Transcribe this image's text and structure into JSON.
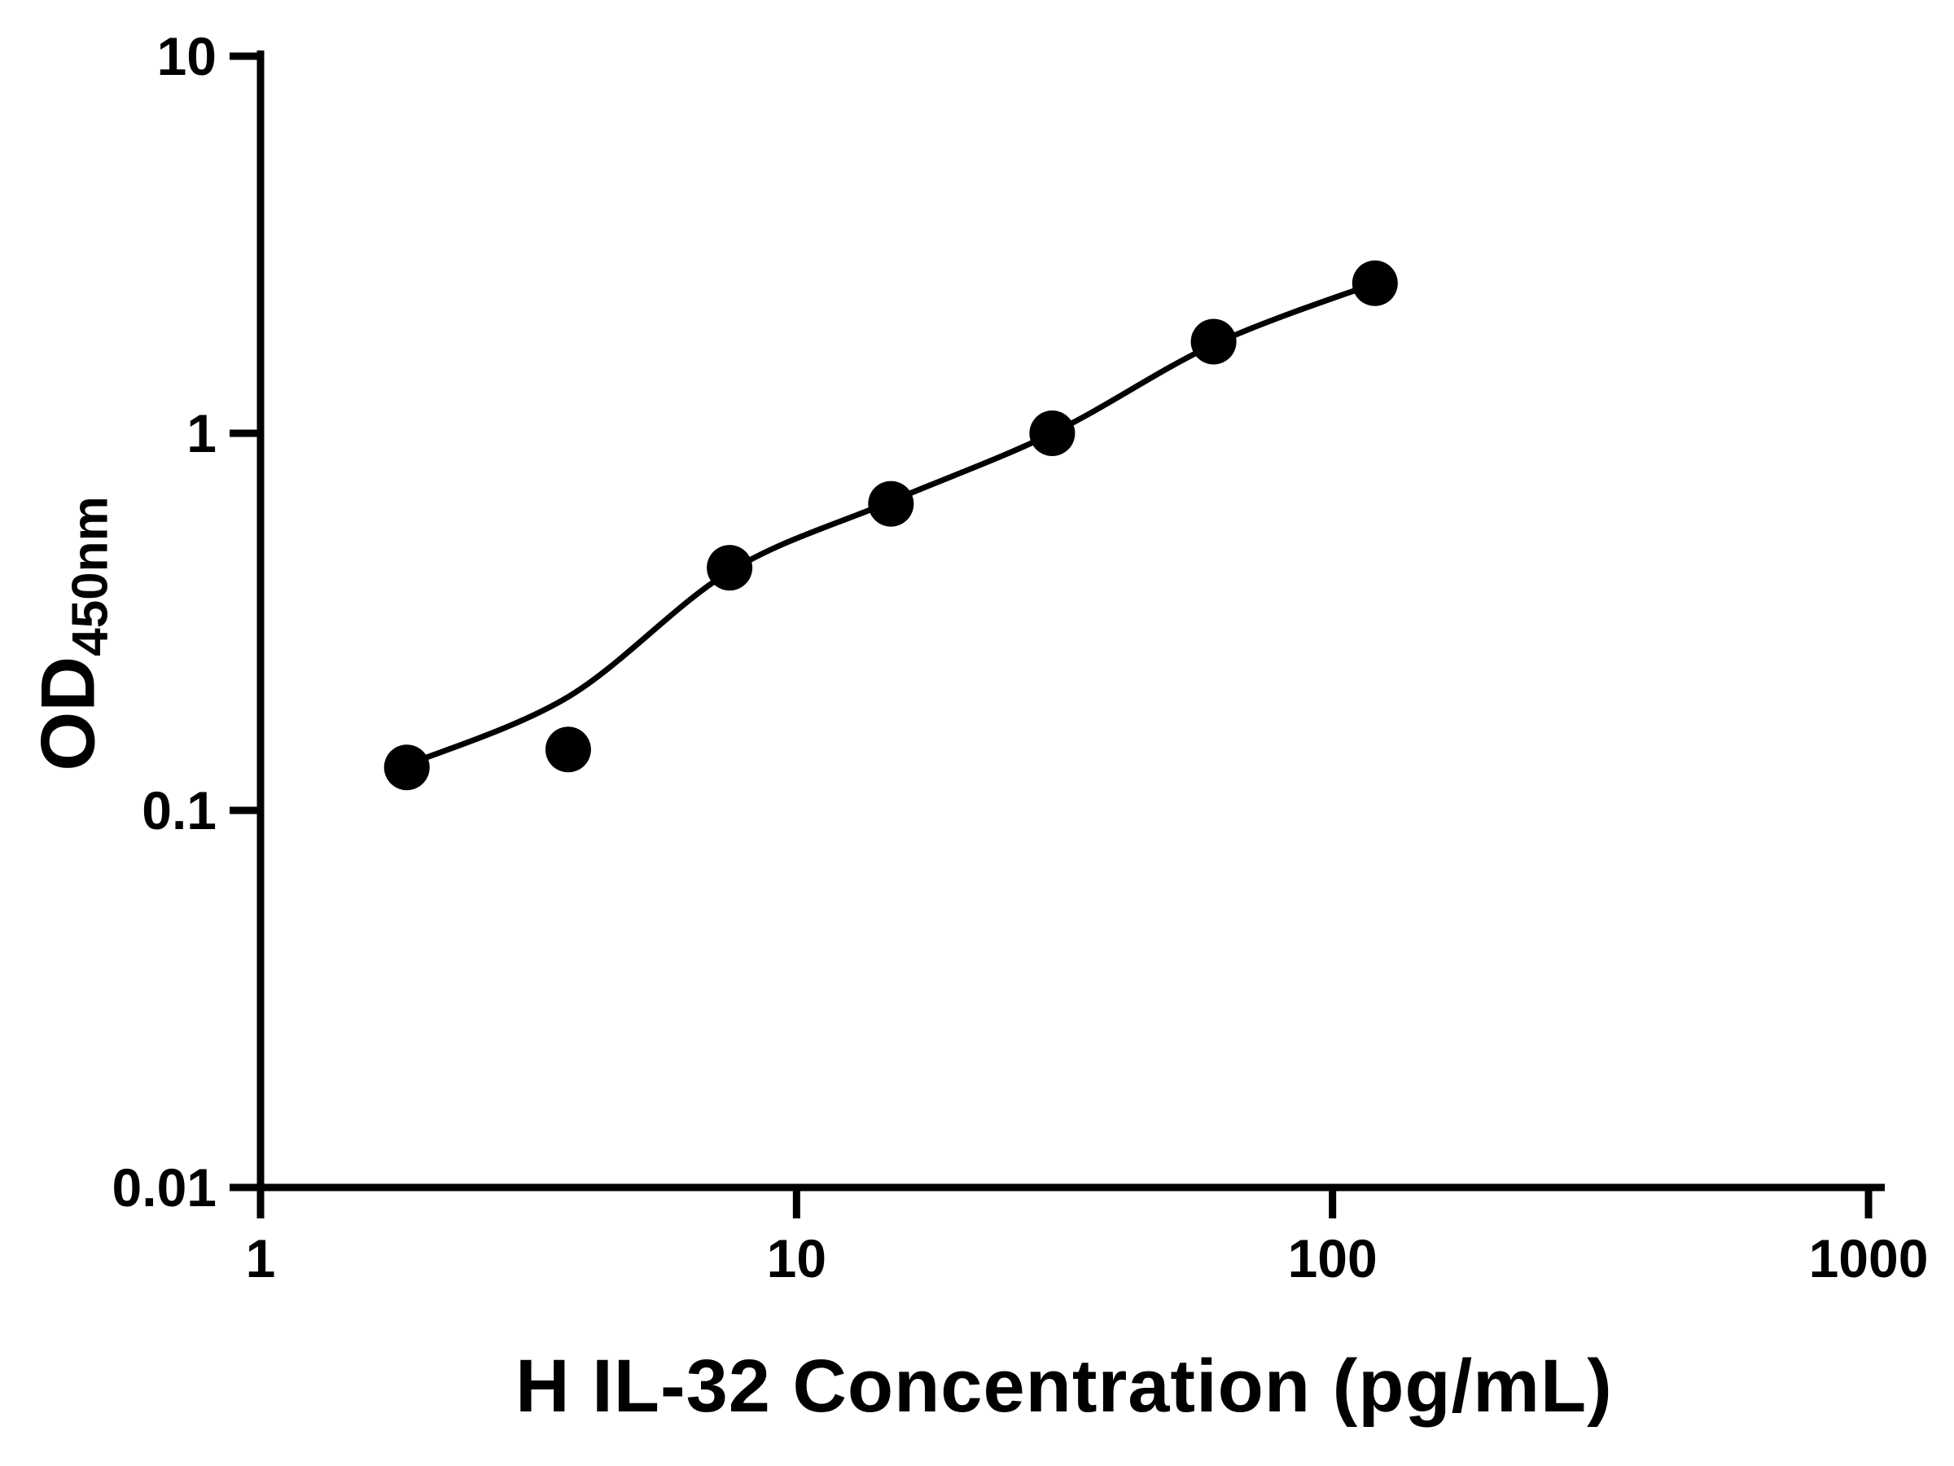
{
  "chart_data": {
    "type": "scatter",
    "title": "",
    "xlabel": "H IL-32 Concentration (pg/mL)",
    "ylabel_main": "OD",
    "ylabel_sub": "450nm",
    "x_scale": "log",
    "y_scale": "log",
    "xlim": [
      1,
      1000
    ],
    "ylim": [
      0.01,
      10
    ],
    "x_ticks": [
      1,
      10,
      100,
      1000
    ],
    "x_tick_labels": [
      "1",
      "10",
      "100",
      "1000"
    ],
    "y_ticks": [
      0.01,
      0.1,
      1,
      10
    ],
    "y_tick_labels": [
      "0.01",
      "0.1",
      "1",
      "10"
    ],
    "grid": false,
    "legend": false,
    "series": [
      {
        "name": "standard-curve-points",
        "marker": "circle",
        "color": "#000000",
        "x": [
          1.875,
          3.75,
          7.5,
          15,
          30,
          60,
          120
        ],
        "y": [
          0.13,
          0.145,
          0.44,
          0.65,
          1.0,
          1.75,
          2.5
        ]
      }
    ],
    "fit_line": {
      "name": "fitted-standard-curve",
      "color": "#000000",
      "x": [
        1.875,
        3.75,
        7.5,
        15,
        30,
        60,
        120
      ],
      "y": [
        0.132,
        0.2,
        0.43,
        0.66,
        1.0,
        1.72,
        2.5
      ]
    }
  },
  "colors": {
    "axis": "#000000",
    "marker": "#000000",
    "line": "#000000",
    "background": "#ffffff",
    "text": "#000000"
  }
}
